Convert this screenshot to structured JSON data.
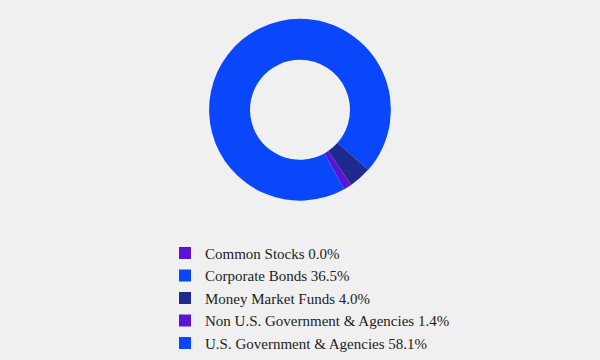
{
  "chart_data": {
    "type": "pie",
    "categories": [
      "Common Stocks 0.0%",
      "Corporate Bonds 36.5%",
      "Money Market Funds 4.0%",
      "Non U.S. Government & Agencies 1.4%",
      "U.S. Government & Agencies 58.1%"
    ],
    "values": [
      0.0,
      36.5,
      4.0,
      1.4,
      58.1
    ],
    "colors": [
      "#5b14d4",
      "#0a47fb",
      "#1f2a8e",
      "#5b14d4",
      "#0a47fb"
    ],
    "legend": "bottom",
    "data_labels": false
  }
}
